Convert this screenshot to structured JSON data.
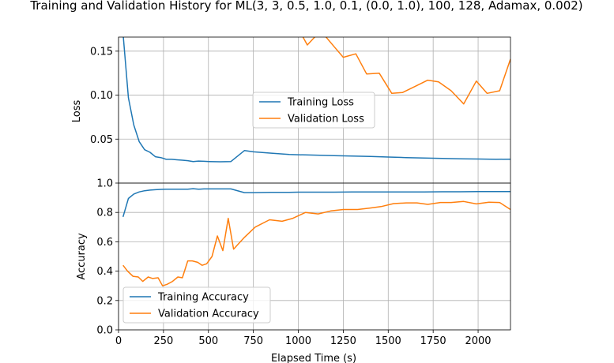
{
  "chart_data": {
    "type": "line",
    "title": "Training and Validation History for ML(3, 3, 0.5, 1.0, 0.1, (0.0, 1.0), 100, 128, Adamax, 0.002)",
    "xlabel": "Elapsed Time (s)",
    "xlim": [
      0,
      2180
    ],
    "xticks": [
      "0",
      "250",
      "500",
      "750",
      "1000",
      "1250",
      "1500",
      "1750",
      "2000"
    ],
    "grid": true,
    "panels": [
      {
        "ylabel": "Loss",
        "ylim": [
          0.0,
          0.166
        ],
        "yticks": [
          "0.05",
          "0.10",
          "0.15"
        ],
        "legend_position": "center",
        "series": [
          {
            "name": "Training Loss",
            "color": "#1f77b4",
            "x": [
              25,
              55,
              85,
              115,
              145,
              175,
              205,
              235,
              265,
              295,
              325,
              355,
              385,
              415,
              445,
              475,
              505,
              535,
              565,
              595,
              625,
              700,
              750,
              850,
              950,
              1000,
              1100,
              1200,
              1300,
              1400,
              1500,
              1600,
              1700,
              1800,
              1900,
              2000,
              2100,
              2180
            ],
            "values": [
              0.17,
              0.097,
              0.066,
              0.047,
              0.038,
              0.035,
              0.03,
              0.029,
              0.027,
              0.027,
              0.0265,
              0.026,
              0.0255,
              0.0245,
              0.025,
              0.0248,
              0.0245,
              0.0243,
              0.0242,
              0.0243,
              0.0245,
              0.037,
              0.0355,
              0.034,
              0.0325,
              0.0322,
              0.0318,
              0.0312,
              0.0308,
              0.0302,
              0.0296,
              0.029,
              0.0284,
              0.028,
              0.0276,
              0.0274,
              0.027,
              0.0272
            ]
          },
          {
            "name": "Validation Loss",
            "color": "#ff7f0e",
            "x": [
              1010,
              1050,
              1100,
              1150,
              1200,
              1250,
              1320,
              1380,
              1450,
              1520,
              1580,
              1650,
              1720,
              1780,
              1850,
              1920,
              1990,
              2050,
              2120,
              2180
            ],
            "values": [
              0.172,
              0.157,
              0.168,
              0.167,
              0.155,
              0.143,
              0.147,
              0.124,
              0.125,
              0.102,
              0.103,
              0.11,
              0.117,
              0.115,
              0.105,
              0.09,
              0.116,
              0.102,
              0.105,
              0.141
            ]
          }
        ]
      },
      {
        "ylabel": "Accuracy",
        "ylim": [
          0.0,
          1.0
        ],
        "yticks": [
          "0.0",
          "0.2",
          "0.4",
          "0.6",
          "0.8",
          "1.0"
        ],
        "legend_position": "lower left",
        "series": [
          {
            "name": "Training Accuracy",
            "color": "#1f77b4",
            "x": [
              25,
              55,
              85,
              115,
              145,
              175,
              205,
              235,
              265,
              295,
              325,
              355,
              385,
              415,
              445,
              475,
              505,
              535,
              565,
              595,
              625,
              700,
              750,
              850,
              950,
              1000,
              1100,
              1200,
              1300,
              1400,
              1500,
              1600,
              1700,
              1800,
              1900,
              2000,
              2100,
              2180
            ],
            "values": [
              0.77,
              0.895,
              0.925,
              0.94,
              0.948,
              0.952,
              0.955,
              0.957,
              0.958,
              0.958,
              0.958,
              0.958,
              0.958,
              0.962,
              0.958,
              0.96,
              0.96,
              0.96,
              0.96,
              0.96,
              0.96,
              0.935,
              0.935,
              0.937,
              0.937,
              0.938,
              0.938,
              0.938,
              0.939,
              0.939,
              0.94,
              0.94,
              0.94,
              0.941,
              0.941,
              0.942,
              0.942,
              0.942
            ]
          },
          {
            "name": "Validation Accuracy",
            "color": "#ff7f0e",
            "x": [
              25,
              50,
              80,
              110,
              135,
              165,
              190,
              220,
              245,
              270,
              300,
              330,
              355,
              385,
              410,
              440,
              465,
              490,
              520,
              550,
              580,
              610,
              640,
              700,
              760,
              840,
              910,
              970,
              1040,
              1110,
              1180,
              1250,
              1330,
              1400,
              1460,
              1530,
              1600,
              1660,
              1720,
              1790,
              1850,
              1920,
              1990,
              2060,
              2120,
              2180
            ],
            "values": [
              0.44,
              0.4,
              0.365,
              0.36,
              0.33,
              0.36,
              0.35,
              0.355,
              0.3,
              0.31,
              0.33,
              0.36,
              0.355,
              0.47,
              0.47,
              0.46,
              0.44,
              0.45,
              0.5,
              0.64,
              0.54,
              0.76,
              0.55,
              0.63,
              0.7,
              0.75,
              0.74,
              0.76,
              0.8,
              0.79,
              0.81,
              0.82,
              0.82,
              0.83,
              0.84,
              0.86,
              0.865,
              0.865,
              0.855,
              0.868,
              0.868,
              0.875,
              0.858,
              0.87,
              0.868,
              0.82
            ]
          }
        ]
      }
    ]
  }
}
